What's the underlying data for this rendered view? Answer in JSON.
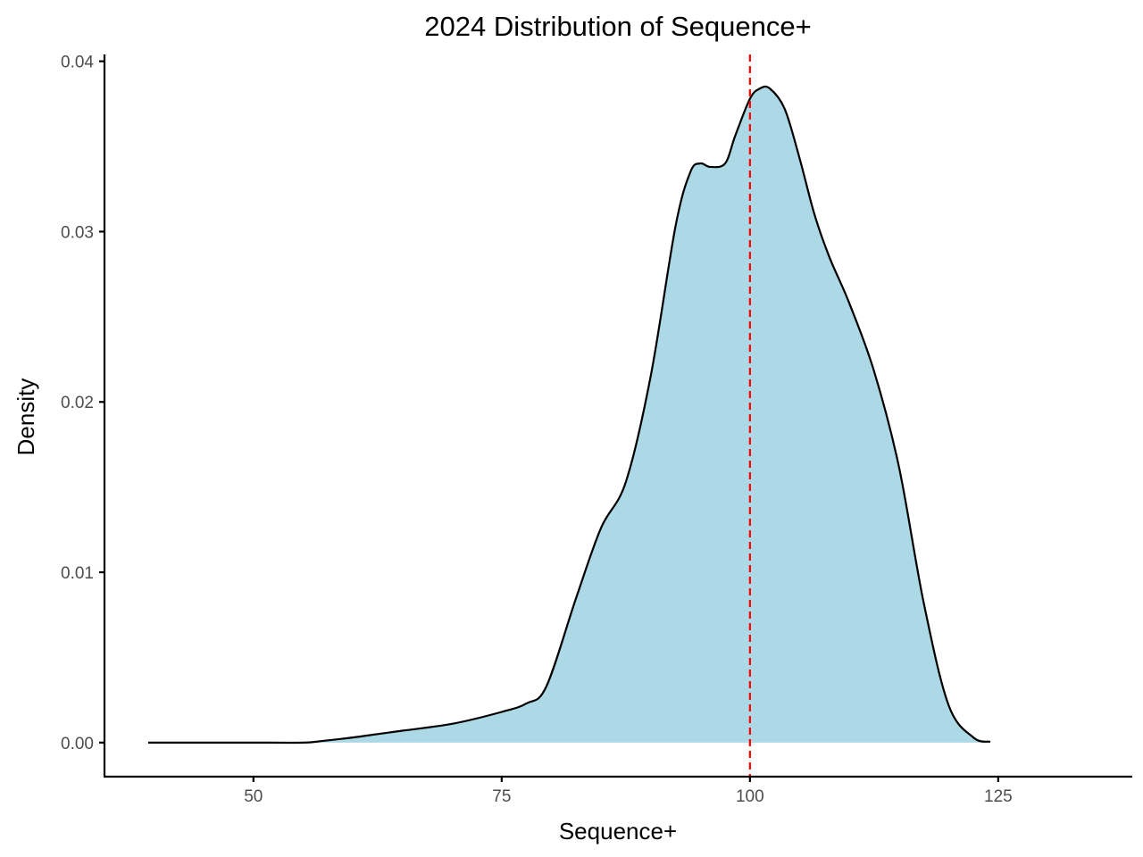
{
  "chart_data": {
    "type": "area",
    "title": "2024 Distribution of Sequence+",
    "xlabel": "Sequence+",
    "ylabel": "Density",
    "xlim": [
      35,
      138.5
    ],
    "ylim": [
      -0.002,
      0.0404
    ],
    "x_ticks": [
      50,
      75,
      100,
      125
    ],
    "x_tick_labels": [
      "50",
      "75",
      "100",
      "125"
    ],
    "y_ticks": [
      0.0,
      0.01,
      0.02,
      0.03,
      0.04
    ],
    "y_tick_labels": [
      "0.00",
      "0.01",
      "0.02",
      "0.03",
      "0.04"
    ],
    "grid": false,
    "legend": "none",
    "fill_color": "#add8e6",
    "line_color": "#000000",
    "reference_line": {
      "x": 100,
      "color": "#ff0000",
      "style": "dashed"
    },
    "series": [
      {
        "x": [
          39.4,
          45,
          50,
          55,
          57,
          60,
          62.5,
          65,
          70,
          75,
          77.5,
          79.5,
          82.5,
          85,
          87.5,
          90,
          92.5,
          94,
          95,
          96,
          97.5,
          98.5,
          100,
          101,
          102,
          103.5,
          105,
          106.5,
          108,
          110,
          112.5,
          115,
          117.5,
          120,
          122.5,
          124.2
        ],
        "y": [
          0.0,
          0.0,
          0.0,
          0.0,
          0.0001,
          0.0003,
          0.0005,
          0.0007,
          0.0011,
          0.0018,
          0.0023,
          0.0033,
          0.0085,
          0.0126,
          0.0153,
          0.0215,
          0.0303,
          0.0335,
          0.034,
          0.0338,
          0.034,
          0.0356,
          0.0378,
          0.0384,
          0.0384,
          0.0372,
          0.0343,
          0.031,
          0.0285,
          0.0258,
          0.0218,
          0.0162,
          0.0082,
          0.0022,
          0.0003,
          5e-05
        ]
      }
    ]
  }
}
